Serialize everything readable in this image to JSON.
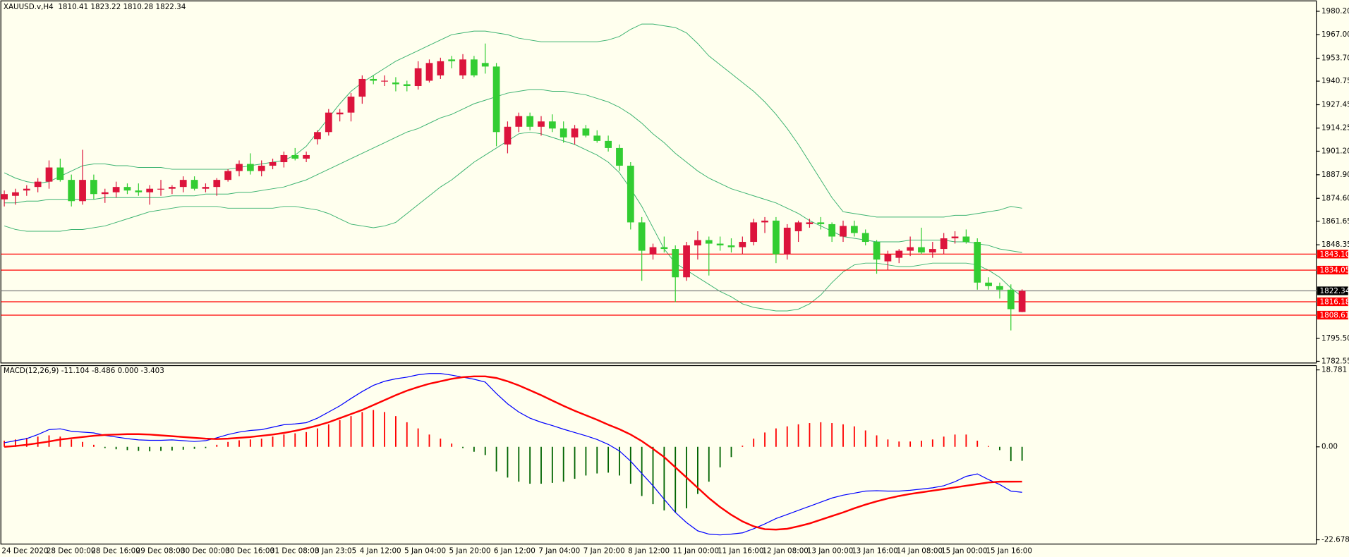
{
  "chart_data": [
    {
      "type": "candlestick",
      "title": "XAUUSD.v,H4  1810.41 1823.22 1810.28 1822.34",
      "categories": [
        "24 Dec 2020",
        null,
        null,
        null,
        "28 Dec 00:00",
        null,
        null,
        null,
        "28 Dec 16:00",
        null,
        null,
        null,
        "29 Dec 08:00",
        null,
        null,
        null,
        "30 Dec 00:00",
        null,
        null,
        null,
        "30 Dec 16:00",
        null,
        null,
        null,
        "31 Dec 08:00",
        null,
        null,
        null,
        "3 Jan 23:05",
        null,
        null,
        null,
        "4 Jan 12:00",
        null,
        null,
        null,
        "5 Jan 04:00",
        null,
        null,
        null,
        "5 Jan 20:00",
        null,
        null,
        null,
        "6 Jan 12:00",
        null,
        null,
        null,
        "7 Jan 04:00",
        null,
        null,
        null,
        "7 Jan 20:00",
        null,
        null,
        null,
        "8 Jan 12:00",
        null,
        null,
        null,
        "11 Jan 00:00",
        null,
        null,
        null,
        "11 Jan 16:00",
        null,
        null,
        null,
        "12 Jan 08:00",
        null,
        null,
        null,
        "13 Jan 00:00",
        null,
        null,
        null,
        "13 Jan 16:00",
        null,
        null,
        null,
        "14 Jan 08:00",
        null,
        null,
        null,
        "15 Jan 00:00",
        null,
        null,
        null,
        "15 Jan 16:00",
        null,
        null,
        null
      ],
      "open": [
        1874,
        1876,
        1879,
        1881,
        1884,
        1892,
        1885,
        1873,
        1885,
        1877,
        1878,
        1881,
        1879,
        1878,
        1880,
        1880,
        1881,
        1885,
        1880,
        1881,
        1885,
        1890,
        1894,
        1890,
        1893,
        1895,
        1899,
        1897,
        1908,
        1912,
        1922,
        1923,
        1932,
        1942,
        1941,
        1940,
        1939,
        1938,
        1941,
        1944,
        1953,
        1944,
        1953,
        1951,
        1949,
        1905,
        1915,
        1921,
        1915,
        1918,
        1914,
        1909,
        1914,
        1910,
        1907,
        1903,
        1893,
        1861,
        1843,
        1847,
        1846,
        1830,
        1848,
        1851,
        1849,
        1848,
        1847,
        1850,
        1861,
        1862,
        1843,
        1856,
        1860,
        1861,
        1860,
        1853,
        1859,
        1855,
        1850,
        1839,
        1841,
        1845,
        1847,
        1844,
        1846,
        1852,
        1853,
        1850,
        1827,
        1825,
        1823,
        1810.41
      ],
      "high": [
        1879,
        1880,
        1882,
        1886,
        1896,
        1897,
        1888,
        1902,
        1888,
        1880,
        1884,
        1883,
        1883,
        1882,
        1885,
        1882,
        1887,
        1887,
        1883,
        1886,
        1891,
        1896,
        1900,
        1896,
        1897,
        1901,
        1903,
        1901,
        1913,
        1925,
        1925,
        1934,
        1944,
        1944,
        1944,
        1943,
        1941,
        1952,
        1953,
        1954,
        1955,
        1956,
        1955,
        1962,
        1951,
        1918,
        1923,
        1923,
        1921,
        1922,
        1918,
        1916,
        1916,
        1913,
        1910,
        1905,
        1895,
        1864,
        1849,
        1853,
        1848,
        1850,
        1856,
        1853,
        1853,
        1852,
        1853,
        1863,
        1864,
        1864,
        1860,
        1862,
        1863,
        1864,
        1861,
        1862,
        1862,
        1857,
        1851,
        1845,
        1846,
        1853,
        1858,
        1850,
        1855,
        1856,
        1857,
        1852,
        1830,
        1827,
        1826,
        1823.22
      ],
      "low": [
        1870,
        1871,
        1876,
        1878,
        1880,
        1884,
        1870,
        1871,
        1874,
        1872,
        1875,
        1877,
        1876,
        1871,
        1876,
        1877,
        1878,
        1879,
        1878,
        1876,
        1884,
        1887,
        1888,
        1887,
        1891,
        1892,
        1896,
        1895,
        1905,
        1910,
        1918,
        1918,
        1928,
        1939,
        1938,
        1935,
        1935,
        1936,
        1940,
        1942,
        1948,
        1942,
        1943,
        1945,
        1904,
        1900,
        1912,
        1913,
        1910,
        1912,
        1906,
        1905,
        1909,
        1906,
        1901,
        1890,
        1857,
        1828,
        1840,
        1844,
        1816,
        1828,
        1840,
        1831,
        1845,
        1844,
        1843,
        1848,
        1855,
        1838,
        1840,
        1850,
        1858,
        1857,
        1850,
        1850,
        1853,
        1848,
        1832,
        1834,
        1838,
        1842,
        1843,
        1841,
        1843,
        1849,
        1849,
        1823,
        1823,
        1818,
        1800,
        1810.28
      ],
      "close": [
        1877,
        1878,
        1880,
        1884,
        1892,
        1885,
        1873,
        1885,
        1877,
        1878,
        1881,
        1879,
        1878,
        1880,
        1880,
        1881,
        1885,
        1880,
        1881,
        1885,
        1890,
        1894,
        1890,
        1893,
        1895,
        1899,
        1897,
        1899,
        1912,
        1923,
        1923,
        1932,
        1942,
        1941,
        1941,
        1939,
        1938,
        1948,
        1951,
        1952,
        1952,
        1953,
        1944,
        1949,
        1912,
        1915,
        1921,
        1915,
        1918,
        1914,
        1909,
        1914,
        1910,
        1907,
        1903,
        1893,
        1861,
        1845,
        1847,
        1846,
        1830,
        1848,
        1851,
        1849,
        1848,
        1847,
        1850,
        1861,
        1862,
        1843,
        1858,
        1861,
        1861,
        1860,
        1853,
        1859,
        1855,
        1850,
        1840,
        1843,
        1845,
        1847,
        1844,
        1846,
        1852,
        1853,
        1850,
        1827,
        1825,
        1823,
        1812,
        1822.34
      ],
      "up_color": "#dc143c",
      "down_color": "#32cd32",
      "bands": [
        {
          "color": "#3cb371",
          "values": [
            1889,
            1886,
            1884,
            1883,
            1884,
            1887,
            1890,
            1893,
            1894,
            1894,
            1893,
            1893,
            1892,
            1892,
            1892,
            1891,
            1891,
            1891,
            1891,
            1891,
            1891,
            1892,
            1893,
            1894,
            1895,
            1896,
            1899,
            1904,
            1912,
            1920,
            1928,
            1935,
            1940,
            1944,
            1948,
            1952,
            1955,
            1958,
            1961,
            1964,
            1967,
            1968,
            1969,
            1969,
            1968,
            1967,
            1965,
            1964,
            1963,
            1963,
            1963,
            1963,
            1963,
            1963,
            1964,
            1966,
            1970,
            1973,
            1973,
            1972,
            1971,
            1968,
            1962,
            1955,
            1950,
            1945,
            1940,
            1935,
            1929,
            1922,
            1914,
            1905,
            1895,
            1885,
            1875,
            1867,
            1866,
            1865,
            1864,
            1864,
            1864,
            1864,
            1864,
            1864,
            1864,
            1865,
            1865,
            1866,
            1867,
            1868,
            1870,
            1869
          ]
        },
        {
          "color": "#3cb371",
          "values": [
            1872,
            1872,
            1873,
            1873,
            1874,
            1874,
            1874,
            1874,
            1874,
            1875,
            1875,
            1875,
            1875,
            1875,
            1875,
            1876,
            1876,
            1876,
            1877,
            1877,
            1877,
            1878,
            1878,
            1879,
            1880,
            1881,
            1883,
            1885,
            1888,
            1891,
            1894,
            1897,
            1900,
            1903,
            1906,
            1909,
            1912,
            1914,
            1917,
            1920,
            1922,
            1925,
            1928,
            1930,
            1932,
            1934,
            1935,
            1936,
            1936,
            1935,
            1935,
            1934,
            1933,
            1931,
            1929,
            1926,
            1922,
            1917,
            1911,
            1906,
            1900,
            1895,
            1890,
            1886,
            1883,
            1880,
            1878,
            1876,
            1874,
            1872,
            1869,
            1866,
            1862,
            1859,
            1856,
            1853,
            1852,
            1851,
            1850,
            1850,
            1850,
            1851,
            1851,
            1851,
            1851,
            1850,
            1850,
            1849,
            1848,
            1846,
            1845,
            1844
          ]
        },
        {
          "color": "#3cb371",
          "values": [
            1859,
            1857,
            1856,
            1856,
            1856,
            1856,
            1857,
            1857,
            1858,
            1859,
            1861,
            1863,
            1865,
            1867,
            1868,
            1869,
            1870,
            1870,
            1870,
            1870,
            1869,
            1869,
            1869,
            1869,
            1869,
            1870,
            1870,
            1869,
            1868,
            1866,
            1863,
            1860,
            1859,
            1858,
            1859,
            1861,
            1866,
            1871,
            1876,
            1881,
            1885,
            1890,
            1895,
            1899,
            1903,
            1907,
            1911,
            1912,
            1911,
            1909,
            1907,
            1905,
            1902,
            1899,
            1895,
            1889,
            1880,
            1870,
            1858,
            1846,
            1838,
            1834,
            1830,
            1826,
            1822,
            1819,
            1815,
            1813,
            1812,
            1811,
            1811,
            1812,
            1815,
            1820,
            1827,
            1833,
            1837,
            1838,
            1838,
            1837,
            1836,
            1836,
            1837,
            1838,
            1838,
            1838,
            1838,
            1837,
            1834,
            1830,
            1824,
            1819
          ]
        }
      ],
      "levels": [
        {
          "value": 1843.1,
          "label": "1843.10",
          "color": "#ff0000"
        },
        {
          "value": 1834.05,
          "label": "1834.05",
          "color": "#ff0000"
        },
        {
          "value": 1822.34,
          "label": "1822.34",
          "color": "#808080"
        },
        {
          "value": 1816.18,
          "label": "1816.18",
          "color": "#ff0000"
        },
        {
          "value": 1808.61,
          "label": "1808.61",
          "color": "#ff0000"
        }
      ],
      "ylim": [
        1781.6,
        1985.6
      ],
      "yticks": [
        {
          "value": 1980.2,
          "label": "1980.20"
        },
        {
          "value": 1967,
          "label": "1967.00"
        },
        {
          "value": 1953.7,
          "label": "1953.70"
        },
        {
          "value": 1940.75,
          "label": "1940.75"
        },
        {
          "value": 1927.45,
          "label": "1927.45"
        },
        {
          "value": 1914.25,
          "label": "1914.25"
        },
        {
          "value": 1901.2,
          "label": "1901.20"
        },
        {
          "value": 1887.9,
          "label": "1887.90"
        },
        {
          "value": 1874.6,
          "label": "1874.60"
        },
        {
          "value": 1861.65,
          "label": "1861.65"
        },
        {
          "value": 1848.35,
          "label": "1848.35"
        },
        {
          "value": 1795.5,
          "label": "1795.50"
        },
        {
          "value": 1782.55,
          "label": "1782.55"
        }
      ],
      "grid": false
    },
    {
      "type": "macd",
      "title": "MACD(12,26,9) -11.104 -8.486 0.000 -3.403",
      "histogram": {
        "up_color": "#ff0000",
        "down_color": "#006400",
        "values": [
          1.5,
          1.8,
          2.2,
          2.5,
          2.8,
          2.5,
          1.8,
          1.2,
          0.5,
          -0.3,
          -0.6,
          -0.8,
          -1.0,
          -1.1,
          -1.0,
          -0.9,
          -0.7,
          -0.5,
          -0.3,
          0.5,
          1.2,
          1.6,
          1.8,
          2.0,
          2.5,
          3.0,
          3.3,
          3.6,
          4.5,
          5.5,
          6.5,
          7.5,
          8.5,
          9.0,
          8.5,
          7.5,
          6.0,
          4.5,
          3.0,
          2.0,
          0.8,
          -0.3,
          -1.2,
          -2.0,
          -6.0,
          -7.5,
          -8.5,
          -9.0,
          -9.0,
          -8.8,
          -8.5,
          -7.8,
          -7.0,
          -6.5,
          -6.3,
          -7.0,
          -9.0,
          -12.0,
          -14.0,
          -15.5,
          -16.0,
          -15.0,
          -11.5,
          -8.5,
          -5.0,
          -2.5,
          0.3,
          2.0,
          3.5,
          4.5,
          5.0,
          5.5,
          5.8,
          6.0,
          5.8,
          5.5,
          5.0,
          4.0,
          2.8,
          1.8,
          1.3,
          1.3,
          1.5,
          1.8,
          2.5,
          3.0,
          3.0,
          1.5,
          0.2,
          -0.8,
          -3.5,
          -3.403
        ]
      },
      "series": [
        {
          "color": "#0000ff",
          "width": 1,
          "values": [
            1.0,
            1.5,
            2.0,
            3.0,
            4.2,
            4.4,
            3.8,
            3.6,
            3.4,
            2.8,
            2.4,
            2.0,
            1.7,
            1.6,
            1.6,
            1.7,
            1.5,
            1.3,
            1.5,
            2.2,
            3.0,
            3.6,
            4.0,
            4.2,
            4.8,
            5.4,
            5.6,
            5.9,
            7.0,
            8.5,
            10.0,
            11.8,
            13.5,
            15.0,
            16.0,
            16.6,
            17.0,
            17.6,
            17.9,
            17.9,
            17.5,
            17.0,
            16.5,
            15.8,
            13.0,
            10.5,
            8.5,
            7.0,
            6.0,
            5.2,
            4.3,
            3.5,
            2.7,
            1.8,
            0.6,
            -1.0,
            -3.5,
            -6.5,
            -9.5,
            -12.8,
            -16.0,
            -18.5,
            -20.5,
            -21.3,
            -21.5,
            -21.3,
            -21.0,
            -20.0,
            -18.8,
            -17.5,
            -16.5,
            -15.5,
            -14.5,
            -13.5,
            -12.5,
            -11.8,
            -11.3,
            -10.8,
            -10.7,
            -10.8,
            -10.8,
            -10.6,
            -10.3,
            -10.0,
            -9.5,
            -8.5,
            -7.2,
            -6.6,
            -8.0,
            -9.2,
            -10.8,
            -11.104
          ]
        },
        {
          "color": "#ff0000",
          "width": 2,
          "values": [
            0.0,
            0.2,
            0.5,
            0.9,
            1.3,
            1.8,
            2.1,
            2.4,
            2.7,
            2.9,
            3.0,
            3.1,
            3.1,
            3.0,
            2.8,
            2.6,
            2.4,
            2.2,
            2.0,
            1.9,
            2.0,
            2.2,
            2.4,
            2.7,
            3.0,
            3.4,
            3.9,
            4.5,
            5.2,
            6.0,
            7.0,
            8.0,
            9.0,
            10.2,
            11.4,
            12.6,
            13.7,
            14.6,
            15.4,
            16.0,
            16.6,
            17.0,
            17.2,
            17.2,
            16.8,
            16.0,
            15.0,
            13.8,
            12.6,
            11.3,
            10.0,
            8.8,
            7.7,
            6.6,
            5.4,
            4.3,
            3.0,
            1.4,
            -0.5,
            -2.5,
            -5.0,
            -7.5,
            -10.0,
            -12.5,
            -14.7,
            -16.6,
            -18.2,
            -19.4,
            -20.1,
            -20.2,
            -20.0,
            -19.4,
            -18.7,
            -17.8,
            -16.9,
            -16.0,
            -15.0,
            -14.1,
            -13.3,
            -12.6,
            -12.0,
            -11.5,
            -11.1,
            -10.7,
            -10.3,
            -9.9,
            -9.5,
            -9.1,
            -8.7,
            -8.5,
            -8.5,
            -8.486
          ]
        }
      ],
      "ylim": [
        -23.73,
        19.83
      ],
      "yticks": [
        18.781,
        {
          "value": 0,
          "label": "0.00"
        },
        -22.678
      ]
    }
  ]
}
